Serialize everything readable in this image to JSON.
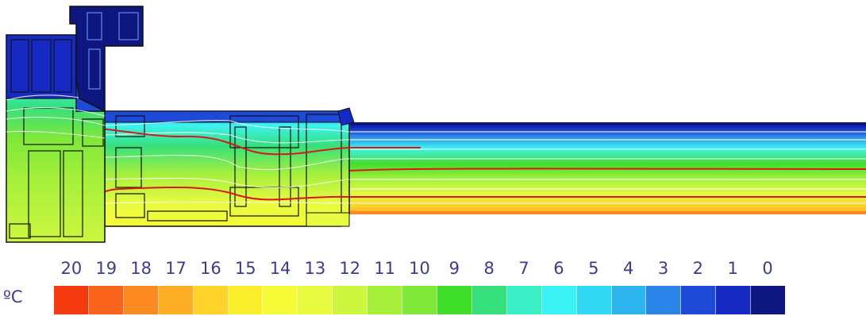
{
  "legend": {
    "unit": "ºC",
    "labels": [
      "20",
      "19",
      "18",
      "17",
      "16",
      "15",
      "14",
      "13",
      "12",
      "11",
      "10",
      "9",
      "8",
      "7",
      "6",
      "5",
      "4",
      "3",
      "2",
      "1",
      "0"
    ],
    "colors": [
      "#f53a10",
      "#f9631a",
      "#fb8a22",
      "#fdb025",
      "#fed42a",
      "#fbee2c",
      "#f5fb36",
      "#e8fb40",
      "#cdf63e",
      "#a6f03c",
      "#7fe838",
      "#40df2c",
      "#36e07c",
      "#3aefc6",
      "#3cf3f3",
      "#31d8f4",
      "#2cb4ef",
      "#2a84e8",
      "#1f4ad8",
      "#1629c2",
      "#0e1680"
    ]
  }
}
